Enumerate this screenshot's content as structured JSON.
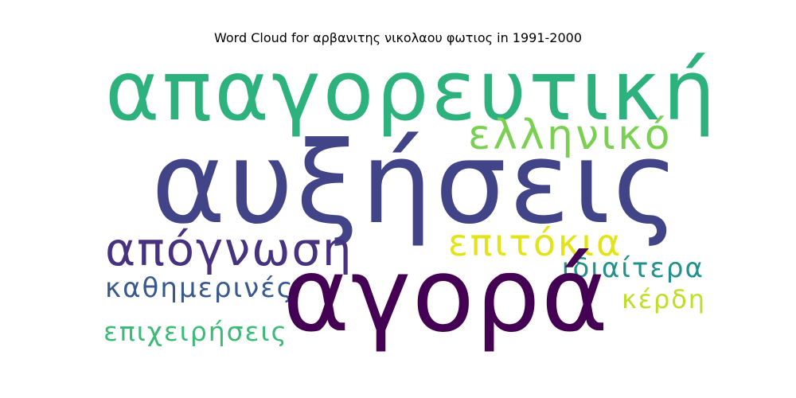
{
  "title": "Word Cloud for αρβανιτης νικολαου φωτιος in 1991-2000",
  "words": [
    {
      "text": "απαγορευτική",
      "color": "#2db27d"
    },
    {
      "text": "ελληνικό",
      "color": "#7ad151"
    },
    {
      "text": "αυξήσεις",
      "color": "#414487"
    },
    {
      "text": "απόγνωση",
      "color": "#46327e"
    },
    {
      "text": "επιτόκια",
      "color": "#e2e418"
    },
    {
      "text": "ιδιαίτερα",
      "color": "#21918c"
    },
    {
      "text": "καθημερινές",
      "color": "#38598c"
    },
    {
      "text": "αγορά",
      "color": "#440154"
    },
    {
      "text": "κέρδη",
      "color": "#bddf26"
    },
    {
      "text": "επιχειρήσεις",
      "color": "#3bbb75"
    }
  ]
}
